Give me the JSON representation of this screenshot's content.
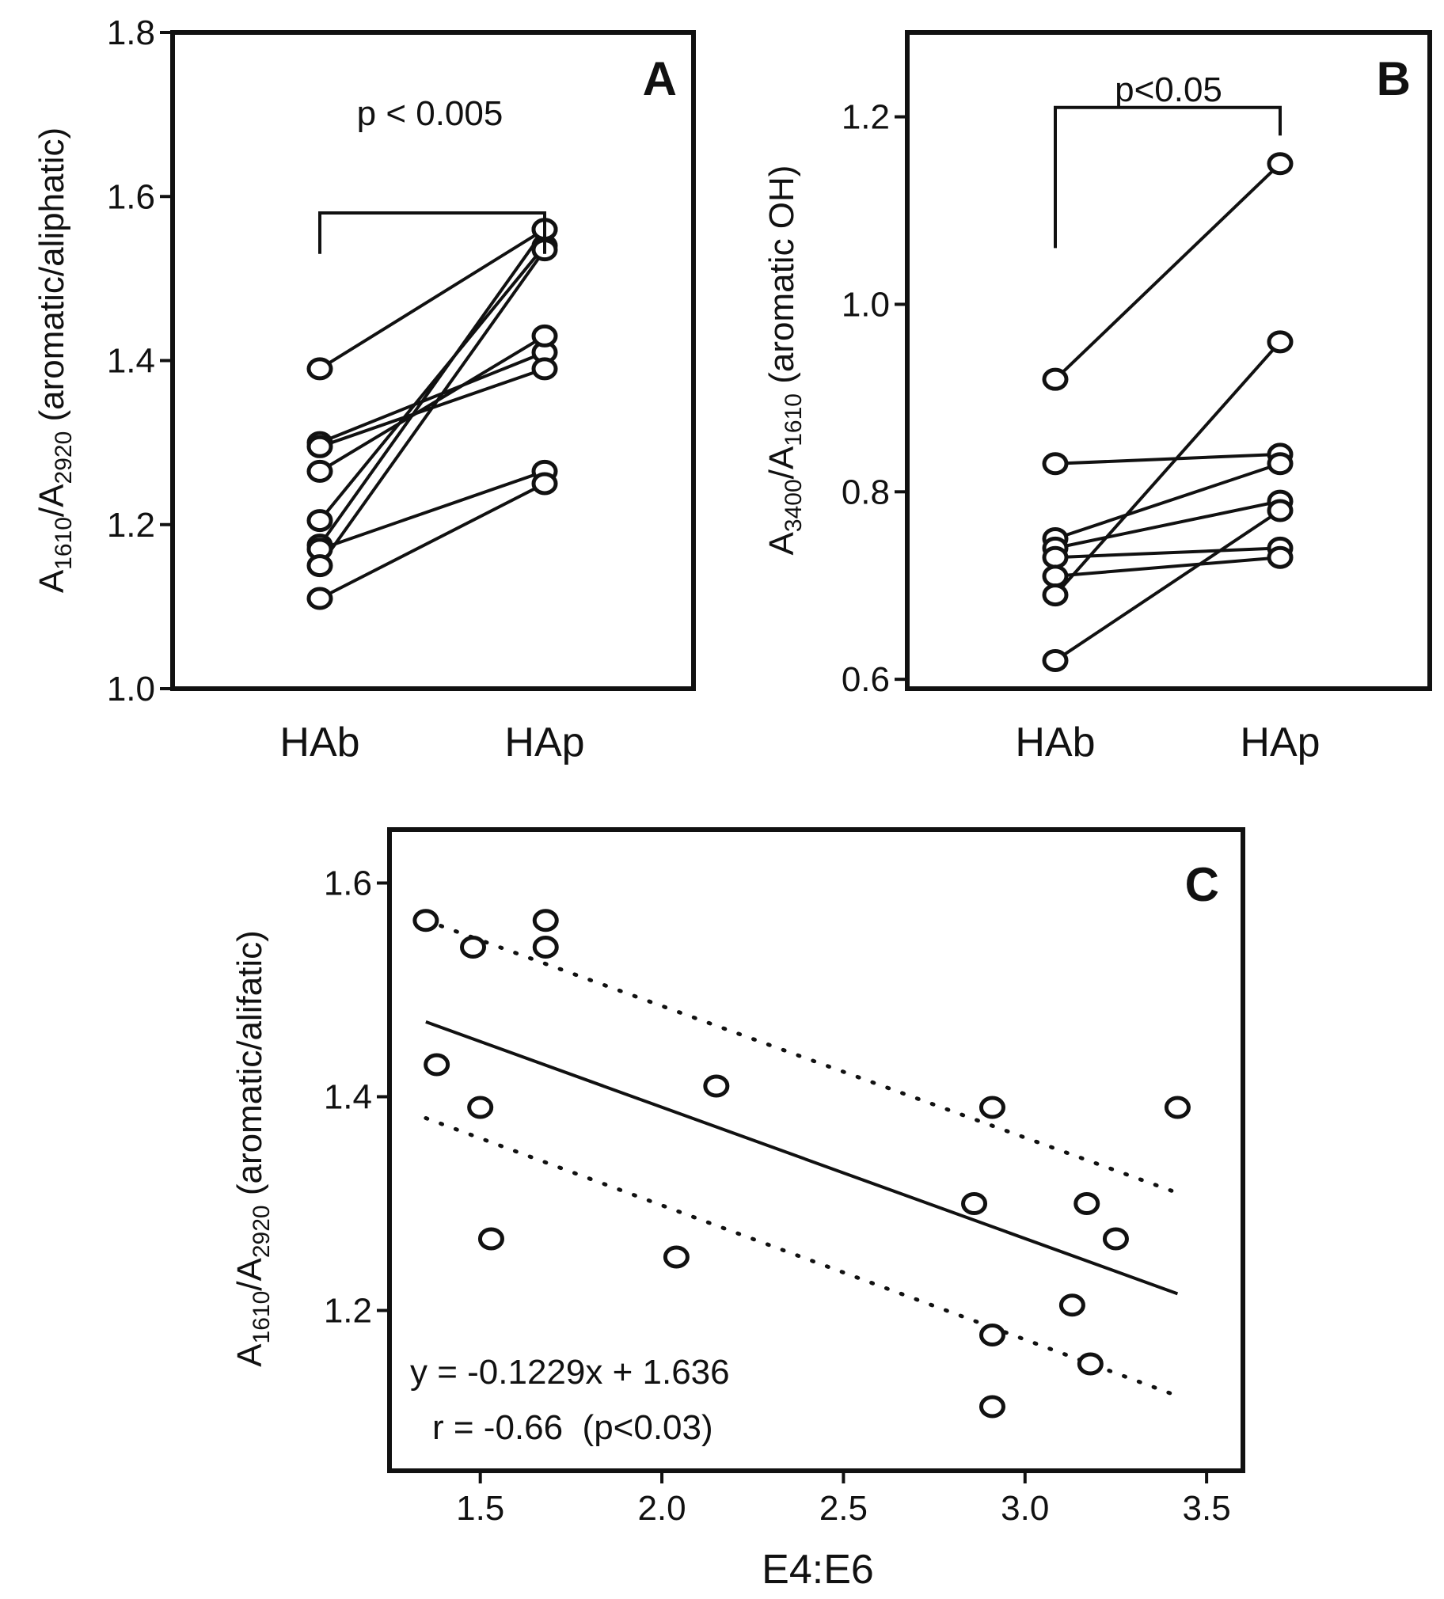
{
  "figure": {
    "panels": [
      {
        "id": "A",
        "letter": "A",
        "ylabel": {
          "main": "A",
          "sub1": "1610",
          "slash": "/A",
          "sub2": "2920",
          "rest": " (aromatic/aliphatic)"
        },
        "p_value": "p < 0.005",
        "bracket_y": [
          1.58,
          1.53,
          1.53
        ]
      },
      {
        "id": "B",
        "letter": "B",
        "ylabel": {
          "main": "A",
          "sub1": "3400",
          "slash": "/A",
          "sub2": "1610",
          "rest": " (aromatic OH)"
        },
        "p_value": "p<0.05",
        "bracket_y": [
          1.21,
          1.06,
          1.18
        ]
      },
      {
        "id": "C",
        "letter": "C",
        "ylabel": {
          "main": "A",
          "sub1": "1610",
          "slash": "/A",
          "sub2": "2920",
          "rest": " (aromatic/alifatic)"
        },
        "xlabel": "E4:E6",
        "equation": "y = -0.1229x + 1.636",
        "correlation": "r = -0.66  (p<0.03)"
      }
    ]
  },
  "chart_data": [
    {
      "type": "line",
      "panel": "A",
      "categories": [
        "HAb",
        "HAp"
      ],
      "ylim": [
        1.0,
        1.8
      ],
      "yticks": [
        1.0,
        1.2,
        1.4,
        1.6,
        1.8
      ],
      "ytick_labels": [
        "1.0",
        "1.2",
        "1.4",
        "1.6",
        "1.8"
      ],
      "grid": false,
      "pairs": [
        [
          1.39,
          1.56
        ],
        [
          1.3,
          1.41
        ],
        [
          1.295,
          1.39
        ],
        [
          1.265,
          1.43
        ],
        [
          1.205,
          1.54
        ],
        [
          1.175,
          1.56
        ],
        [
          1.17,
          1.265
        ],
        [
          1.15,
          1.535
        ],
        [
          1.11,
          1.25
        ]
      ],
      "title": "",
      "ylabel": "A1610/A2920 (aromatic/aliphatic)"
    },
    {
      "type": "line",
      "panel": "B",
      "categories": [
        "HAb",
        "HAp"
      ],
      "ylim": [
        0.59,
        1.29
      ],
      "yticks": [
        0.6,
        0.8,
        1.0,
        1.2
      ],
      "ytick_labels": [
        "0.6",
        "0.8",
        "1.0",
        "1.2"
      ],
      "grid": false,
      "pairs": [
        [
          0.92,
          1.15
        ],
        [
          0.83,
          0.84
        ],
        [
          0.75,
          0.83
        ],
        [
          0.74,
          0.79
        ],
        [
          0.73,
          0.74
        ],
        [
          0.71,
          0.73
        ],
        [
          0.69,
          0.96
        ],
        [
          0.62,
          0.78
        ]
      ],
      "title": "",
      "ylabel": "A3400/A1610 (aromatic OH)"
    },
    {
      "type": "scatter",
      "panel": "C",
      "xlim": [
        1.25,
        3.6
      ],
      "ylim": [
        1.05,
        1.65
      ],
      "xticks": [
        1.5,
        2.0,
        2.5,
        3.0,
        3.5
      ],
      "xtick_labels": [
        "1.5",
        "2.0",
        "2.5",
        "3.0",
        "3.5"
      ],
      "yticks": [
        1.2,
        1.4,
        1.6
      ],
      "ytick_labels": [
        "1.2",
        "1.4",
        "1.6"
      ],
      "grid": false,
      "points": [
        [
          1.35,
          1.565
        ],
        [
          1.48,
          1.54
        ],
        [
          1.68,
          1.565
        ],
        [
          1.68,
          1.54
        ],
        [
          1.38,
          1.43
        ],
        [
          1.5,
          1.39
        ],
        [
          1.53,
          1.267
        ],
        [
          2.04,
          1.25
        ],
        [
          2.15,
          1.41
        ],
        [
          2.91,
          1.39
        ],
        [
          3.42,
          1.39
        ],
        [
          2.86,
          1.3
        ],
        [
          3.17,
          1.3
        ],
        [
          3.25,
          1.267
        ],
        [
          3.13,
          1.205
        ],
        [
          2.91,
          1.177
        ],
        [
          3.18,
          1.15
        ],
        [
          2.91,
          1.11
        ]
      ],
      "fit": {
        "slope": -0.1229,
        "intercept": 1.636,
        "x_range": [
          1.35,
          3.42
        ]
      },
      "ci_upper": [
        [
          1.35,
          1.565
        ],
        [
          3.42,
          1.31
        ]
      ],
      "ci_lower": [
        [
          1.35,
          1.38
        ],
        [
          3.42,
          1.12
        ]
      ],
      "xlabel": "E4:E6",
      "ylabel": "A1610/A2920 (aromatic/alifatic)",
      "title": ""
    }
  ]
}
